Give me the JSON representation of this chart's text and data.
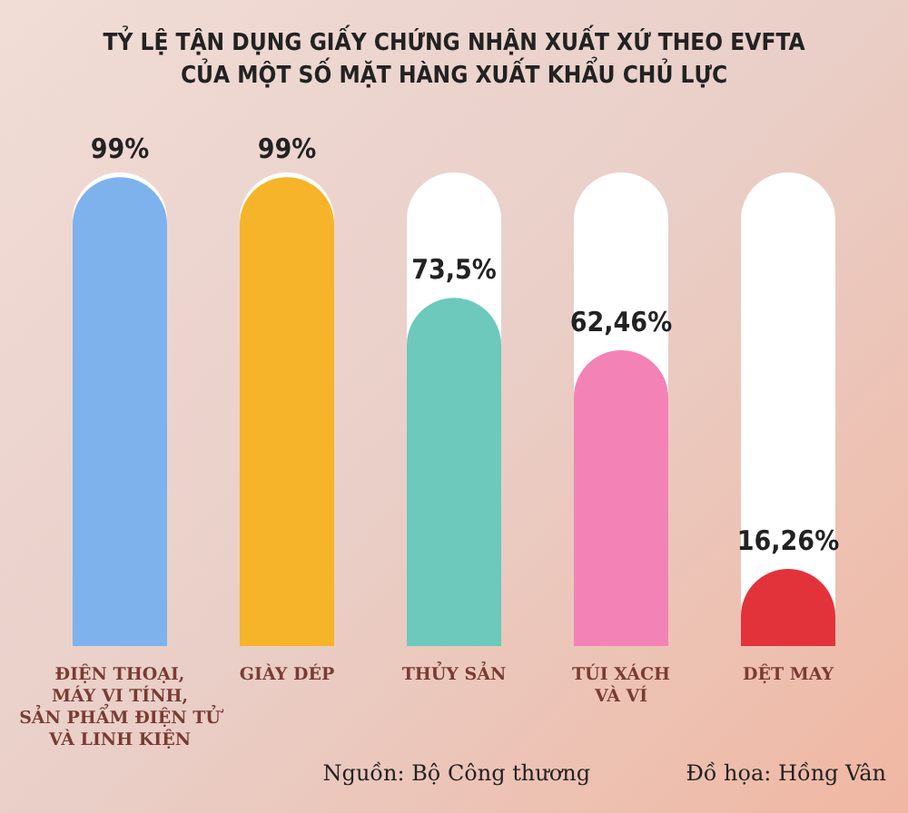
{
  "chart_data": {
    "type": "bar",
    "title": "TỶ LỆ TẬN DỤNG GIẤY CHỨNG NHẬN XUẤT XỨ THEO EVFTA\nCỦA MỘT SỐ MẶT HÀNG XUẤT KHẨU CHỦ LỰC",
    "categories": [
      "ĐIỆN THOẠI,\nMÁY VI TÍNH,\nSẢN PHẨM ĐIỆN TỬ\nVÀ LINH KIỆN",
      "GIÀY DÉP",
      "THỦY SẢN",
      "TÚI XÁCH\nVÀ VÍ",
      "DỆT MAY"
    ],
    "values": [
      99,
      99,
      73.5,
      62.46,
      16.26
    ],
    "value_labels": [
      "99%",
      "99%",
      "73,5%",
      "62,46%",
      "16,26%"
    ],
    "colors": [
      "#7eb2ec",
      "#f6b42a",
      "#6cc9bb",
      "#f383b6",
      "#e2333b"
    ],
    "annotations": [
      "Nguồn: Bộ Công thương",
      "Đồ họa: Hồng Vân"
    ]
  }
}
